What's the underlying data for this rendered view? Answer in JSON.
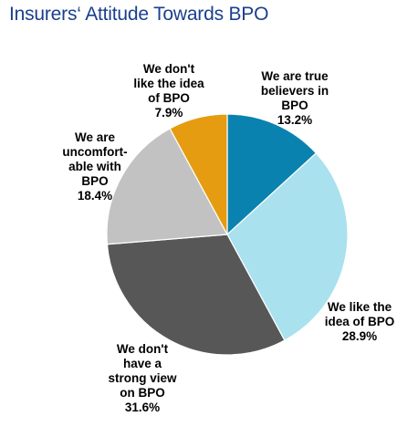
{
  "chart_data": {
    "type": "pie",
    "title": "Insurers‘ Attitude Towards BPO",
    "slices": [
      {
        "label": [
          "We are true",
          "believers in",
          "BPO"
        ],
        "value_label": "13.2%",
        "value": 13.2,
        "color": "#0a82b0"
      },
      {
        "label": [
          "We like the",
          "idea of BPO"
        ],
        "value_label": "28.9%",
        "value": 28.9,
        "color": "#a9e1ee"
      },
      {
        "label": [
          "We don't",
          "have a",
          "strong view",
          "on BPO"
        ],
        "value_label": "31.6%",
        "value": 31.6,
        "color": "#575757"
      },
      {
        "label": [
          "We are",
          "uncomfort-",
          "able with",
          "BPO"
        ],
        "value_label": "18.4%",
        "value": 18.4,
        "color": "#c2c2c2"
      },
      {
        "label": [
          "We don't",
          "like the idea",
          "of BPO"
        ],
        "value_label": "7.9%",
        "value": 7.9,
        "color": "#e59c10"
      }
    ],
    "start": "12 o'clock",
    "direction": "clockwise",
    "slice_border_color": "#ffffff"
  }
}
